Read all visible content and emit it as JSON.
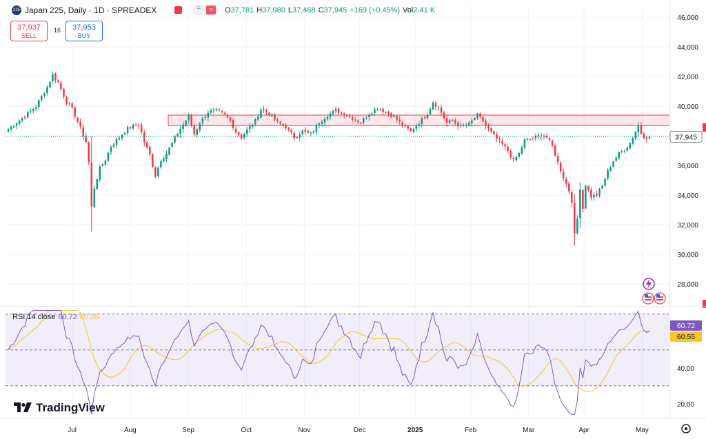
{
  "header": {
    "symbol_badge": "225",
    "title": "Japan 225, Daily · 1D · SPREADEX",
    "ohlc": [
      {
        "key": "O",
        "value": "37,781"
      },
      {
        "key": "H",
        "value": "37,980"
      },
      {
        "key": "L",
        "value": "37,468"
      },
      {
        "key": "C",
        "value": "37,945"
      },
      {
        "key": "",
        "value": "+169 (+0.45%)"
      },
      {
        "key": "Vol",
        "value": "2.41 K"
      }
    ]
  },
  "trade": {
    "sell_price": "37,937",
    "sell_label": "SELL",
    "buy_price": "37,953",
    "buy_label": "BUY",
    "spread": "16"
  },
  "rsi_legend": {
    "name": "RSI 14 close",
    "rsi": "60.72",
    "ma": "60.55"
  },
  "branding": {
    "logo_text": "TradingView"
  },
  "colors": {
    "up": "#089981",
    "down": "#f23645",
    "rsi": "#7e57c2",
    "rsi_ma": "#f7c52c",
    "zone": "#f23645"
  },
  "chart_data": [
    {
      "type": "candlestick",
      "title": "Japan 225, Daily · 1D · SPREADEX",
      "x_ticks": [
        "Jul",
        "Aug",
        "Sep",
        "Oct",
        "Nov",
        "Dec",
        "2025",
        "Feb",
        "Mar",
        "Apr",
        "May"
      ],
      "y_ticks": [
        "46,000",
        "44,000",
        "42,000",
        "40,000",
        "38,000",
        "36,000",
        "34,000",
        "32,000",
        "30,000",
        "28,000"
      ],
      "ylim": [
        26600,
        46800
      ],
      "last_price": "37,945",
      "last_value": 37945,
      "resistance_zone": {
        "from": 38700,
        "to": 39400
      },
      "grid": true,
      "series_close_anchors": [
        [
          0,
          38450
        ],
        [
          5,
          39200
        ],
        [
          10,
          40000
        ],
        [
          14,
          41300
        ],
        [
          16,
          42100
        ],
        [
          18,
          41600
        ],
        [
          21,
          40300
        ],
        [
          23,
          39800
        ],
        [
          26,
          38500
        ],
        [
          28,
          37600
        ],
        [
          29,
          36200
        ],
        [
          30,
          33200
        ],
        [
          31,
          34500
        ],
        [
          33,
          35800
        ],
        [
          35,
          36400
        ],
        [
          37,
          37300
        ],
        [
          40,
          37900
        ],
        [
          43,
          38500
        ],
        [
          47,
          38800
        ],
        [
          49,
          37600
        ],
        [
          51,
          36700
        ],
        [
          53,
          35300
        ],
        [
          55,
          36400
        ],
        [
          57,
          36800
        ],
        [
          59,
          37500
        ],
        [
          62,
          38500
        ],
        [
          65,
          39300
        ],
        [
          67,
          38100
        ],
        [
          69,
          38900
        ],
        [
          72,
          39600
        ],
        [
          75,
          39700
        ],
        [
          78,
          39400
        ],
        [
          80,
          39000
        ],
        [
          82,
          38300
        ],
        [
          84,
          37900
        ],
        [
          87,
          38600
        ],
        [
          89,
          39000
        ],
        [
          91,
          39800
        ],
        [
          94,
          39500
        ],
        [
          97,
          38900
        ],
        [
          100,
          38600
        ],
        [
          103,
          37900
        ],
        [
          106,
          38300
        ],
        [
          109,
          38100
        ],
        [
          112,
          38900
        ],
        [
          115,
          39400
        ],
        [
          118,
          39700
        ],
        [
          121,
          39500
        ],
        [
          124,
          39200
        ],
        [
          127,
          38900
        ],
        [
          130,
          39500
        ],
        [
          133,
          39900
        ],
        [
          136,
          39600
        ],
        [
          139,
          39300
        ],
        [
          142,
          38700
        ],
        [
          145,
          38300
        ],
        [
          148,
          38900
        ],
        [
          151,
          39500
        ],
        [
          153,
          40300
        ],
        [
          155,
          39900
        ],
        [
          158,
          38900
        ],
        [
          160,
          39000
        ],
        [
          163,
          38600
        ],
        [
          166,
          38800
        ],
        [
          169,
          39400
        ],
        [
          171,
          39000
        ],
        [
          174,
          38200
        ],
        [
          177,
          37600
        ],
        [
          180,
          37000
        ],
        [
          182,
          36300
        ],
        [
          184,
          36800
        ],
        [
          186,
          37700
        ],
        [
          189,
          37800
        ],
        [
          192,
          38100
        ],
        [
          194,
          37900
        ],
        [
          196,
          37300
        ],
        [
          198,
          36200
        ],
        [
          200,
          35200
        ],
        [
          202,
          34300
        ],
        [
          203,
          33600
        ],
        [
          204,
          31300
        ],
        [
          205,
          32400
        ],
        [
          206,
          34500
        ],
        [
          207,
          33100
        ],
        [
          208,
          34700
        ],
        [
          210,
          33900
        ],
        [
          212,
          34000
        ],
        [
          214,
          34600
        ],
        [
          216,
          35600
        ],
        [
          218,
          36300
        ],
        [
          220,
          36800
        ],
        [
          222,
          37100
        ],
        [
          224,
          37500
        ],
        [
          226,
          38300
        ],
        [
          227,
          38700
        ],
        [
          228,
          38200
        ],
        [
          230,
          37776
        ],
        [
          231,
          37945
        ]
      ]
    },
    {
      "type": "line",
      "title": "RSI 14 close",
      "series": [
        {
          "name": "RSI 14 close",
          "last": 60.72
        },
        {
          "name": "MA",
          "last": 60.55
        }
      ],
      "y_ticks": [
        "40.00",
        "20.00"
      ],
      "bands": {
        "upper": 70,
        "middle": 50,
        "lower": 30
      },
      "ylim": [
        13,
        73
      ]
    }
  ]
}
